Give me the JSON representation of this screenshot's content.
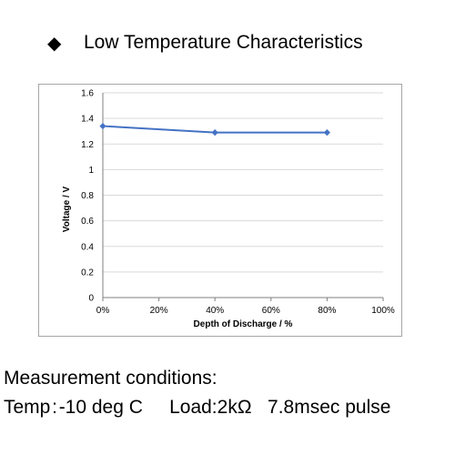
{
  "heading": {
    "bullet": "◆",
    "title": "Low Temperature Characteristics"
  },
  "chart_data": {
    "type": "line",
    "title": "",
    "xlabel": "Depth of Discharge / %",
    "ylabel": "Voltage / V",
    "x": [
      0,
      40,
      80
    ],
    "series": [
      {
        "values": [
          1.34,
          1.29,
          1.29
        ],
        "color": "#4472c4"
      }
    ],
    "xlim": [
      0,
      100
    ],
    "ylim": [
      0,
      1.6
    ],
    "x_ticks": [
      "0%",
      "20%",
      "40%",
      "60%",
      "80%",
      "100%"
    ],
    "y_ticks": [
      "0",
      "0.2",
      "0.4",
      "0.6",
      "0.8",
      "1",
      "1.2",
      "1.4",
      "1.6"
    ],
    "grid": true,
    "legend": "none"
  },
  "conditions": {
    "heading": "Measurement conditions:",
    "details": "Temp : -10 deg C     Load:2kΩ   7.8msec pulse"
  }
}
